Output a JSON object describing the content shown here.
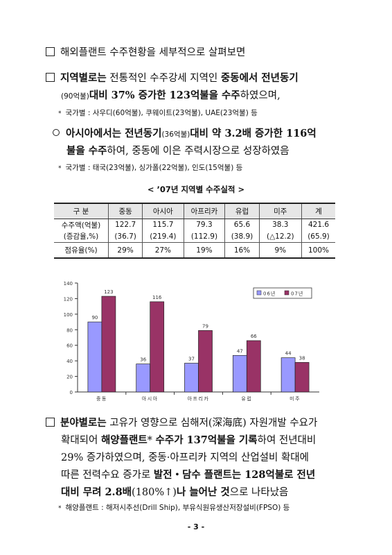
{
  "intro": "해외플랜트 수주현황을 세부적으로 살펴보면",
  "region": {
    "lead": "지역별로는",
    "t1": " 전통적인 수주강세 지역인 ",
    "b1": "중동에서 전년동기",
    "l2a": "(90억불)",
    "b2": "대비 37% 증가한 123억불을 수주",
    "l2c": "하였으며,",
    "note": "국가별 : 사우디(60억불), 쿠웨이트(23억불), UAE(23억불) 등"
  },
  "asia": {
    "b1": "아시아에서는 전년동기",
    "s1": "(36억불)",
    "b2": "대비 약 3.2배 증가한 116억",
    "b3": "불을 수주",
    "t3": "하여, 중동에 이은 주력시장으로 성장하였음",
    "note": "국가별 : 태국(23억불), 싱가폴(22억불), 인도(15억불) 등"
  },
  "table": {
    "title": "< ’07년 지역별 수주실적 >",
    "headers": [
      "구 분",
      "중동",
      "아시아",
      "아프리카",
      "유럽",
      "미주",
      "계"
    ],
    "row1_label": "수주액(억불)",
    "row1": [
      "122.7",
      "115.7",
      "79.3",
      "65.6",
      "38.3",
      "421.6"
    ],
    "row2_label": "(증감율,%)",
    "row2": [
      "(36.7)",
      "(219.4)",
      "(112.9)",
      "(38.9)",
      "(△12.2)",
      "(65.9)"
    ],
    "row3_label": "점유율(%)",
    "row3": [
      "29%",
      "27%",
      "19%",
      "16%",
      "9%",
      "100%"
    ]
  },
  "chart_data": {
    "type": "bar",
    "categories": [
      "중동",
      "아시아",
      "아프리카",
      "유럽",
      "미주"
    ],
    "series": [
      {
        "name": "06년",
        "values": [
          90,
          36,
          37,
          47,
          44
        ],
        "color": "#9999ff"
      },
      {
        "name": "07년",
        "values": [
          123,
          116,
          79,
          66,
          38
        ],
        "color": "#993366"
      }
    ],
    "ylim": [
      0,
      140
    ],
    "yticks": [
      0,
      20,
      40,
      60,
      80,
      100,
      120,
      140
    ],
    "grid": false,
    "legend": "top-right",
    "title": "",
    "xlabel": "",
    "ylabel": ""
  },
  "field": {
    "lead": "분야별로는",
    "t1": " 고유가 영향으로 심해저(深海底) 자원개발 수요가",
    "t2a": "확대되어 ",
    "b2": "해양플랜트",
    "t2b": "* ",
    "b2c": "수주가 137억불을 기록",
    "t2d": "하여 전년대비",
    "t3": "29% 증가하였으며, 중동·아프리카 지역의 산업설비 확대에",
    "t4a": "따른 전력수요 증가로 ",
    "b4": "발전‧담수 플랜트는 128억불로 전년",
    "b5a": "대비 무려 2.8배",
    "t5": "(180%↑)",
    "b5b": "나 늘어난 것",
    "t5c": "으로 나타났음",
    "note": "해양플랜트 : 해저시추선(Drill Ship), 부유식원유생산저장설비(FPSO) 등"
  },
  "page": "- 3 -"
}
